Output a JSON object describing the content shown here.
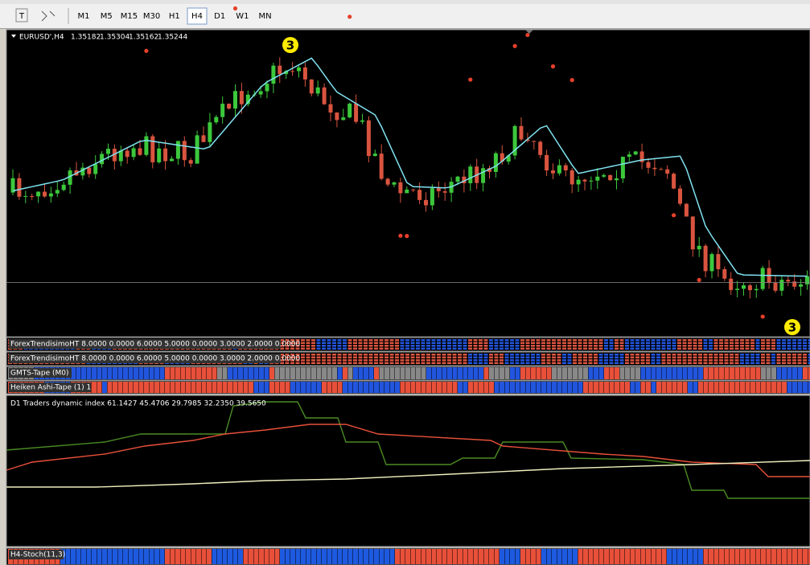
{
  "toolbar": {
    "timeframes": [
      "M1",
      "M5",
      "M15",
      "M30",
      "H1",
      "H4",
      "D1",
      "W1",
      "MN"
    ],
    "active_index": 5
  },
  "chart": {
    "symbol": "EURUSD',H4",
    "prices": [
      "1.35182",
      "1.35304",
      "1.35162",
      "1.35244"
    ],
    "markers": [
      "3",
      "3"
    ]
  },
  "indicators": [
    {
      "label": "ForexTrendisimoHT 8.0000 0.0000 6.0000 5.0000 0.0000 3.0000 2.0000 0.0000"
    },
    {
      "label": "ForexTrendisimoHT 8.0000 0.0000 6.0000 5.0000 0.0000 3.0000 2.0000 0.0000"
    },
    {
      "label": "GMTS-Tape (M0)"
    },
    {
      "label": "Heiken Ashi-Tape (1) 1"
    },
    {
      "label": "D1 Traders dynamic index 61.1427 45.4706 29.7985 32.2350 39.5650"
    },
    {
      "label": "H4-Stoch(11,3)"
    }
  ]
}
